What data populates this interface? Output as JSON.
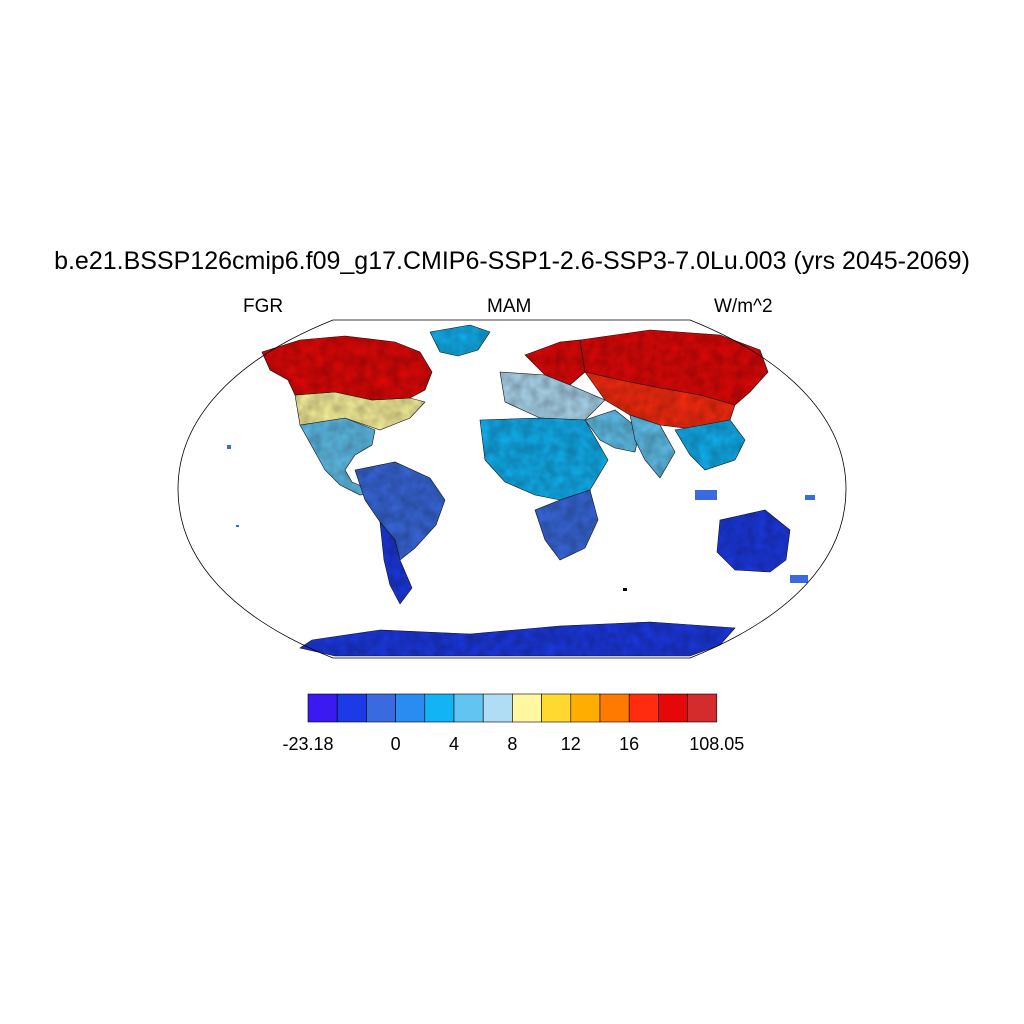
{
  "title": "b.e21.BSSP126cmip6.f09_g17.CMIP6-SSP1-2.6-SSP3-7.0Lu.003 (yrs 2045-2069)",
  "left_label": "FGR",
  "center_label": "MAM",
  "right_label": "W/m^2",
  "colorbar": {
    "colors": [
      "#3a1af0",
      "#1c3ae6",
      "#3a6ae0",
      "#2a8cf0",
      "#12b4f5",
      "#62c4f0",
      "#b0dcf4",
      "#fff8a0",
      "#ffd830",
      "#ffae00",
      "#ff7a00",
      "#ff2c10",
      "#e60808",
      "#d42c2c"
    ],
    "labels": [
      "-23.18",
      "0",
      "4",
      "8",
      "12",
      "16",
      "108.05"
    ],
    "label_bins": [
      0,
      3,
      5,
      7,
      9,
      11,
      14
    ]
  },
  "map": {
    "projection": "robinson",
    "regions": [
      {
        "name": "north-america-arctic",
        "level": 12
      },
      {
        "name": "north-america-central",
        "level": 7
      },
      {
        "name": "north-america-south",
        "level": 5
      },
      {
        "name": "greenland-south",
        "level": 4
      },
      {
        "name": "south-america",
        "level": 2
      },
      {
        "name": "patagonia",
        "level": 1
      },
      {
        "name": "europe-north",
        "level": 12
      },
      {
        "name": "europe-south",
        "level": 6
      },
      {
        "name": "north-africa",
        "level": 4
      },
      {
        "name": "southern-africa",
        "level": 2
      },
      {
        "name": "siberia",
        "level": 12
      },
      {
        "name": "central-asia",
        "level": 11
      },
      {
        "name": "middle-east",
        "level": 5
      },
      {
        "name": "south-asia",
        "level": 5
      },
      {
        "name": "southeast-asia",
        "level": 4
      },
      {
        "name": "australia",
        "level": 1
      },
      {
        "name": "antarctica",
        "level": 1
      }
    ]
  }
}
